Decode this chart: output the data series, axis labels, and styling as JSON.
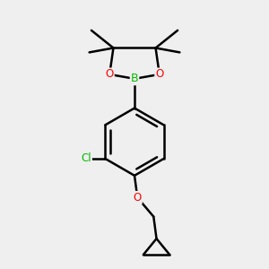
{
  "bg_color": "#efefef",
  "bond_color": "#000000",
  "bond_width": 1.8,
  "atom_colors": {
    "B": "#00bb00",
    "O": "#ff0000",
    "Cl": "#00bb00",
    "C": "#000000"
  },
  "figsize": [
    3.0,
    3.0
  ],
  "dpi": 100
}
